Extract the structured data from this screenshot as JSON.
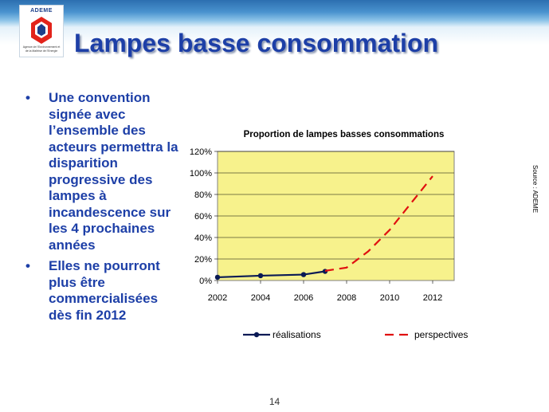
{
  "slide": {
    "title": "Lampes basse consommation",
    "bullets": [
      "Une convention signée avec l’ensemble des acteurs permettra la disparition progressive des lampes à incandescence sur les 4 prochaines années",
      "Elles ne pourront plus être commercialisées dès fin 2012"
    ],
    "source": "Source : ADEME",
    "page_number": "14",
    "logo": {
      "name": "ADEME",
      "subtitle": "Agence de l'Environnement et de la Maîtrise de l'Energie"
    },
    "colors": {
      "title": "#1d3fa7",
      "plot_background": "#f7f28c",
      "realisations": "#0a1a55",
      "perspectives": "#e01010"
    }
  },
  "chart_data": {
    "type": "line",
    "title": "Proportion de lampes basses consommations",
    "xlabel": "",
    "ylabel": "",
    "x_ticks": [
      "2002",
      "2004",
      "2006",
      "2008",
      "2010",
      "2012"
    ],
    "y_ticks": [
      "0%",
      "20%",
      "40%",
      "60%",
      "80%",
      "100%",
      "120%"
    ],
    "xlim": [
      2002,
      2013
    ],
    "ylim": [
      0,
      120
    ],
    "grid": true,
    "legend_position": "bottom",
    "series": [
      {
        "name": "réalisations",
        "style": "solid-markers",
        "color": "#0a1a55",
        "points": [
          [
            2002,
            3
          ],
          [
            2004,
            4.5
          ],
          [
            2006,
            5.5
          ],
          [
            2007,
            8.5
          ]
        ]
      },
      {
        "name": "perspectives",
        "style": "dashed",
        "color": "#e01010",
        "points": [
          [
            2007,
            9
          ],
          [
            2008,
            12
          ],
          [
            2009,
            27
          ],
          [
            2010,
            47
          ],
          [
            2011,
            72
          ],
          [
            2012,
            97
          ]
        ]
      }
    ]
  }
}
